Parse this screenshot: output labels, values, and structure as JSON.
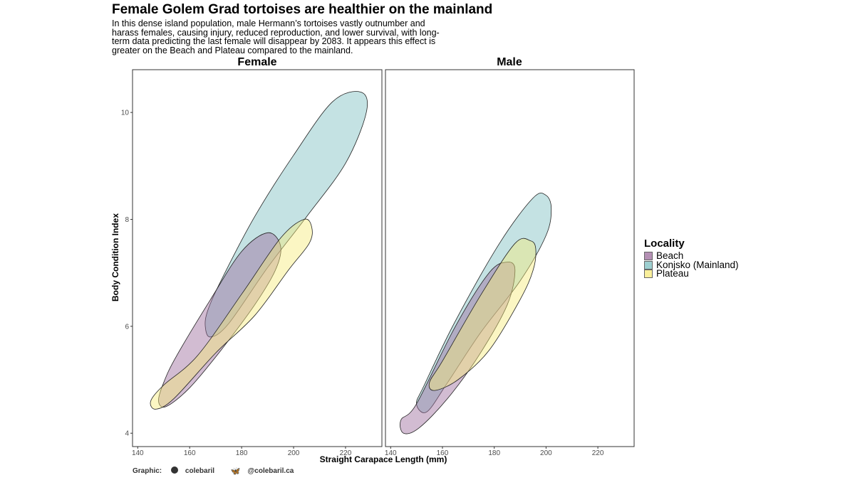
{
  "title": "Female Golem Grad tortoises are healthier on the mainland",
  "subtitle": "In this dense island population, male Hermann’s tortoises vastly outnumber and harass females, causing injury, reduced reproduction, and lower survival, with long-term data predicting the last female will disappear by 2083. It appears this effect is greater on the Beach and Plateau compared to the mainland.",
  "caption": {
    "label": "Graphic:",
    "github": "colebaril",
    "bluesky": "@colebaril.ca",
    "github_icon": "github-icon",
    "bluesky_icon": "butterfly-icon"
  },
  "legend": {
    "title": "Locality",
    "items": [
      {
        "label": "Beach",
        "color": "#9b6b9b"
      },
      {
        "label": "Konjsko (Mainland)",
        "color": "#7dbfc1"
      },
      {
        "label": "Plateau",
        "color": "#f7ea7a"
      }
    ]
  },
  "chart_data": {
    "type": "ellipse",
    "xlabel": "Straight Carapace Length (mm)",
    "ylabel": "Body Condition Index",
    "xlim": [
      138,
      234
    ],
    "ylim": [
      3.75,
      10.8
    ],
    "x_ticks": [
      140,
      160,
      180,
      200,
      220
    ],
    "y_ticks": [
      4,
      6,
      8,
      10
    ],
    "fill_opacity": 0.45,
    "facets": [
      {
        "name": "Female",
        "ellipses": [
          {
            "locality": "Konjsko (Mainland)",
            "polygon": [
              [
                228,
                10.0
              ],
              [
                226,
                10.38
              ],
              [
                215,
                10.2
              ],
              [
                200,
                9.2
              ],
              [
                185,
                8.05
              ],
              [
                172,
                6.85
              ],
              [
                167,
                6.3
              ],
              [
                166,
                6.0
              ],
              [
                168,
                5.8
              ],
              [
                175,
                6.05
              ],
              [
                190,
                7.1
              ],
              [
                205,
                8.05
              ],
              [
                220,
                9.05
              ]
            ]
          },
          {
            "locality": "Beach",
            "polygon": [
              [
                195,
                7.5
              ],
              [
                190,
                7.75
              ],
              [
                180,
                7.4
              ],
              [
                168,
                6.5
              ],
              [
                155,
                5.45
              ],
              [
                150,
                4.95
              ],
              [
                148,
                4.6
              ],
              [
                151,
                4.5
              ],
              [
                160,
                4.85
              ],
              [
                172,
                5.55
              ],
              [
                185,
                6.4
              ],
              [
                193,
                7.05
              ]
            ]
          },
          {
            "locality": "Plateau",
            "polygon": [
              [
                207,
                7.85
              ],
              [
                204,
                8.0
              ],
              [
                195,
                7.65
              ],
              [
                180,
                6.6
              ],
              [
                163,
                5.45
              ],
              [
                150,
                4.9
              ],
              [
                145,
                4.6
              ],
              [
                147,
                4.45
              ],
              [
                154,
                4.65
              ],
              [
                170,
                5.5
              ],
              [
                185,
                6.2
              ],
              [
                198,
                7.05
              ],
              [
                206,
                7.55
              ]
            ]
          }
        ]
      },
      {
        "name": "Male",
        "ellipses": [
          {
            "locality": "Konjsko (Mainland)",
            "polygon": [
              [
                202,
                8.2
              ],
              [
                200,
                8.45
              ],
              [
                195,
                8.4
              ],
              [
                182,
                7.55
              ],
              [
                165,
                6.1
              ],
              [
                153,
                4.9
              ],
              [
                150,
                4.55
              ],
              [
                154,
                4.4
              ],
              [
                162,
                4.95
              ],
              [
                175,
                5.9
              ],
              [
                190,
                6.85
              ],
              [
                200,
                7.7
              ]
            ]
          },
          {
            "locality": "Beach",
            "polygon": [
              [
                188,
                7.05
              ],
              [
                185,
                7.2
              ],
              [
                178,
                7.0
              ],
              [
                165,
                6.0
              ],
              [
                150,
                4.55
              ],
              [
                144,
                4.25
              ],
              [
                145,
                4.0
              ],
              [
                151,
                4.1
              ],
              [
                162,
                4.65
              ],
              [
                174,
                5.45
              ],
              [
                185,
                6.4
              ]
            ]
          },
          {
            "locality": "Plateau",
            "polygon": [
              [
                196,
                7.45
              ],
              [
                194,
                7.6
              ],
              [
                188,
                7.55
              ],
              [
                175,
                6.6
              ],
              [
                160,
                5.35
              ],
              [
                155,
                4.95
              ],
              [
                157,
                4.8
              ],
              [
                166,
                5.0
              ],
              [
                178,
                5.55
              ],
              [
                190,
                6.5
              ],
              [
                195,
                7.05
              ]
            ]
          }
        ]
      }
    ]
  }
}
